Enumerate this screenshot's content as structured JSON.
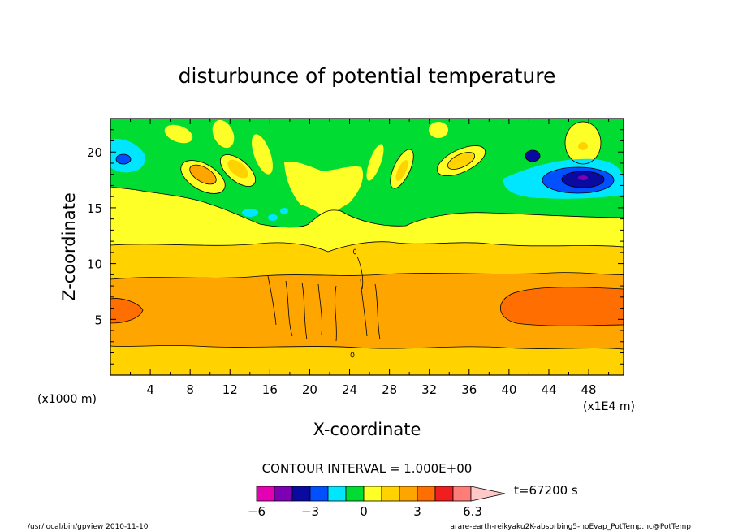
{
  "chart_data": {
    "type": "heatmap",
    "title": "disturbunce of potential temperature",
    "xlabel": "X-coordinate",
    "ylabel": "Z-coordinate",
    "x_unit_left": "(x1000 m)",
    "x_unit_right": "(x1E4 m)",
    "xlim": [
      0,
      51.5
    ],
    "ylim": [
      0,
      23
    ],
    "x_ticks": [
      4,
      8,
      12,
      16,
      20,
      24,
      28,
      32,
      36,
      40,
      44,
      48
    ],
    "x_tick_labels": [
      "4",
      "8",
      "12",
      "16",
      "20",
      "24",
      "28",
      "32",
      "36",
      "40",
      "44",
      "48"
    ],
    "y_ticks": [
      5,
      10,
      15,
      20
    ],
    "y_tick_labels": [
      "5",
      "10",
      "15",
      "20"
    ],
    "contour_interval_text": "CONTOUR INTERVAL = 1.000E+00",
    "time_label": "t=67200 s",
    "colorbar": {
      "labels": [
        {
          "value": -6,
          "text": "−6"
        },
        {
          "value": -3,
          "text": "−3"
        },
        {
          "value": 0,
          "text": "0"
        },
        {
          "value": 3,
          "text": "3"
        },
        {
          "value": 6.3,
          "text": "6.3"
        }
      ],
      "bins": [
        {
          "from": -6,
          "to": -5,
          "color": "#e600b4"
        },
        {
          "from": -5,
          "to": -4,
          "color": "#7d00b4"
        },
        {
          "from": -4,
          "to": -3,
          "color": "#0a0aa0"
        },
        {
          "from": -3,
          "to": -2,
          "color": "#0050ff"
        },
        {
          "from": -2,
          "to": -1,
          "color": "#00e6ff"
        },
        {
          "from": -1,
          "to": 0,
          "color": "#00dc32"
        },
        {
          "from": 0,
          "to": 1,
          "color": "#ffff28"
        },
        {
          "from": 1,
          "to": 2,
          "color": "#ffd200"
        },
        {
          "from": 2,
          "to": 3,
          "color": "#ffa500"
        },
        {
          "from": 3,
          "to": 4,
          "color": "#ff6e00"
        },
        {
          "from": 4,
          "to": 5,
          "color": "#f01e1e"
        },
        {
          "from": 5,
          "to": 6,
          "color": "#ff7d78"
        },
        {
          "from": 6,
          "to": 6.3,
          "color": "#ffc8c8"
        }
      ]
    }
  },
  "footer": {
    "left": "/usr/local/bin/gpview  2010-11-10",
    "right": "arare-earth-reikyaku2K-absorbing5-noEvap_PotTemp.nc@PotTemp"
  }
}
